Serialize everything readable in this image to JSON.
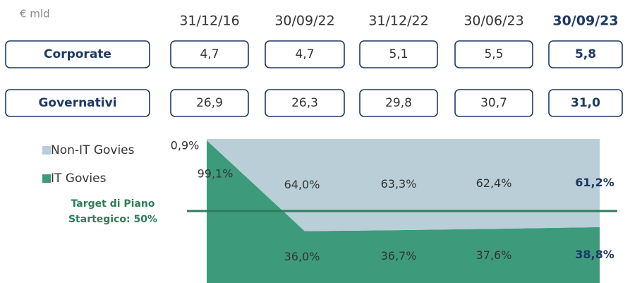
{
  "unit": "€ mld",
  "table": {
    "columns": [
      "31/12/16",
      "30/09/22",
      "31/12/22",
      "30/06/23",
      "30/09/23"
    ],
    "highlight_column": 4,
    "rows": [
      {
        "label": "Corporate",
        "values": [
          "4,7",
          "4,7",
          "5,1",
          "5,5",
          "5,8"
        ]
      },
      {
        "label": "Governativi",
        "values": [
          "26,9",
          "26,3",
          "29,8",
          "30,7",
          "31,0"
        ]
      }
    ]
  },
  "chart_data": {
    "type": "area",
    "stacked": true,
    "ylim": [
      0,
      100
    ],
    "highlight_index": 4,
    "highlight_color": "#1f3864",
    "series": [
      {
        "name": "IT Govies",
        "color": "#3d9b7c",
        "values": [
          99.1,
          36.0,
          36.7,
          37.6,
          38.8
        ],
        "value_labels": [
          "99,1%",
          "36,0%",
          "36,7%",
          "37,6%",
          "38,8%"
        ]
      },
      {
        "name": "Non-IT Govies",
        "color": "#b9ced7",
        "values": [
          0.9,
          64.0,
          63.3,
          62.4,
          61.2
        ],
        "value_labels": [
          "0,9%",
          "64,0%",
          "63,3%",
          "62,4%",
          "61,2%"
        ]
      }
    ],
    "target": {
      "value": 50,
      "color": "#2e7d5b",
      "label": [
        "Target di Piano",
        "Startegico: 50%"
      ]
    }
  }
}
